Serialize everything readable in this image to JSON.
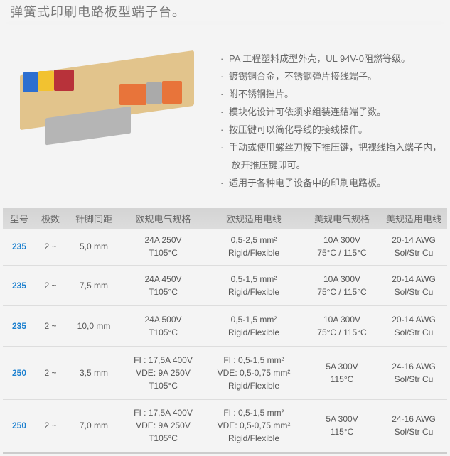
{
  "title": "弹簧式印刷电路板型端子台。",
  "features": [
    "PA 工程塑料成型外壳，UL 94V-0阻燃等级。",
    "镀锡铜合金，不锈钢弹片接线端子。",
    "附不锈钢挡片。",
    "模块化设计可依须求组装连結端子数。",
    "按压键可以简化导线的接线操作。",
    "手动或使用螺丝刀按下推压键，把裸线插入端子内，",
    "放开推压键即可。",
    "适用于各种电子设备中的印刷电路板。"
  ],
  "bullet": "·",
  "table": {
    "headers": [
      "型号",
      "极数",
      "针脚间距",
      "欧规电气规格",
      "欧规适用电线",
      "美规电气规格",
      "美规适用电线"
    ],
    "rows": [
      {
        "model": "235",
        "poles": "2 ~",
        "pitch": "5,0 mm",
        "eu_spec": [
          "24A 250V",
          "T105°C"
        ],
        "eu_wire": [
          "0,5-2,5 mm²",
          "Rigid/Flexible"
        ],
        "us_spec": [
          "10A 300V",
          "75°C / 115°C"
        ],
        "us_wire": [
          "20-14 AWG",
          "Sol/Str Cu"
        ]
      },
      {
        "model": "235",
        "poles": "2 ~",
        "pitch": "7,5 mm",
        "eu_spec": [
          "24A 450V",
          "T105°C"
        ],
        "eu_wire": [
          "0,5-1,5 mm²",
          "Rigid/Flexible"
        ],
        "us_spec": [
          "10A 300V",
          "75°C / 115°C"
        ],
        "us_wire": [
          "20-14 AWG",
          "Sol/Str Cu"
        ]
      },
      {
        "model": "235",
        "poles": "2 ~",
        "pitch": "10,0 mm",
        "eu_spec": [
          "24A 500V",
          "T105°C"
        ],
        "eu_wire": [
          "0,5-1,5 mm²",
          "Rigid/Flexible"
        ],
        "us_spec": [
          "10A 300V",
          "75°C / 115°C"
        ],
        "us_wire": [
          "20-14 AWG",
          "Sol/Str Cu"
        ]
      },
      {
        "model": "250",
        "poles": "2 ~",
        "pitch": "3,5 mm",
        "eu_spec": [
          "FI : 17,5A 400V",
          "VDE: 9A 250V",
          "T105°C"
        ],
        "eu_wire": [
          "FI : 0,5-1,5 mm²",
          "VDE: 0,5-0,75 mm²",
          "Rigid/Flexible"
        ],
        "us_spec": [
          "5A 300V",
          "115°C"
        ],
        "us_wire": [
          "24-16 AWG",
          "Sol/Str Cu"
        ]
      },
      {
        "model": "250",
        "poles": "2 ~",
        "pitch": "7,0 mm",
        "eu_spec": [
          "FI : 17,5A 400V",
          "VDE: 9A 250V",
          "T105°C"
        ],
        "eu_wire": [
          "FI : 0,5-1,5 mm²",
          "VDE: 0,5-0,75 mm²",
          "Rigid/Flexible"
        ],
        "us_spec": [
          "5A 300V",
          "115°C"
        ],
        "us_wire": [
          "24-16 AWG",
          "Sol/Str Cu"
        ]
      }
    ]
  },
  "colors": {
    "model_link": "#1a7fcf",
    "background": "#f4f4f4"
  }
}
